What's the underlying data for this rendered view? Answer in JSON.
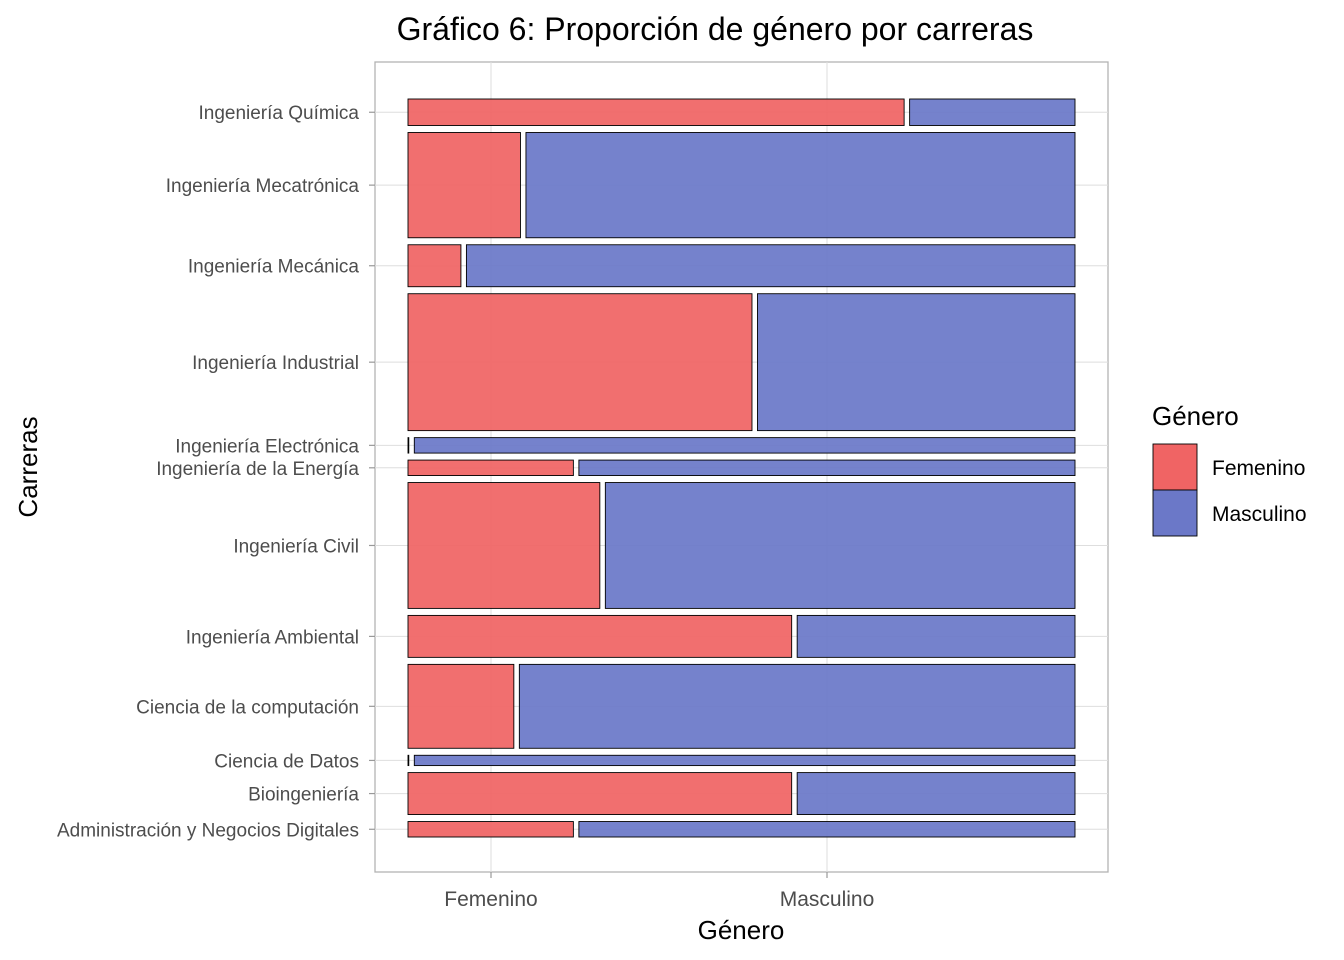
{
  "chart_data": {
    "type": "mosaic",
    "title": "Gráfico 6: Proporción de género por carreras",
    "xlabel": "Género",
    "ylabel": "Carreras",
    "x_ticks": [
      "Femenino",
      "Masculino"
    ],
    "grid": true,
    "legend": {
      "title": "Género",
      "position": "right",
      "entries": [
        {
          "label": "Femenino",
          "color": "#F06464"
        },
        {
          "label": "Masculino",
          "color": "#6B78C8"
        }
      ]
    },
    "colors": {
      "Femenino": "#F06464",
      "Masculino": "#6B78C8"
    },
    "categories": [
      "Administración y Negocios Digitales",
      "Bioingeniería",
      "Ciencia de Datos",
      "Ciencia de la computación",
      "Ingeniería Ambiental",
      "Ingeniería Civil",
      "Ingeniería de la Energía",
      "Ingeniería Electrónica",
      "Ingeniería Industrial",
      "Ingeniería Mecánica",
      "Ingeniería Mecatrónica",
      "Ingeniería Química"
    ],
    "row_share": [
      0.021,
      0.057,
      0.014,
      0.114,
      0.057,
      0.171,
      0.021,
      0.021,
      0.186,
      0.057,
      0.143,
      0.036
    ],
    "series": [
      {
        "name": "Femenino",
        "values": [
          0.25,
          0.58,
          0.0,
          0.16,
          0.58,
          0.29,
          0.25,
          0.0,
          0.52,
          0.08,
          0.17,
          0.75
        ]
      },
      {
        "name": "Masculino",
        "values": [
          0.75,
          0.42,
          1.0,
          0.84,
          0.42,
          0.71,
          0.75,
          1.0,
          0.48,
          0.92,
          0.83,
          0.25
        ]
      }
    ]
  }
}
